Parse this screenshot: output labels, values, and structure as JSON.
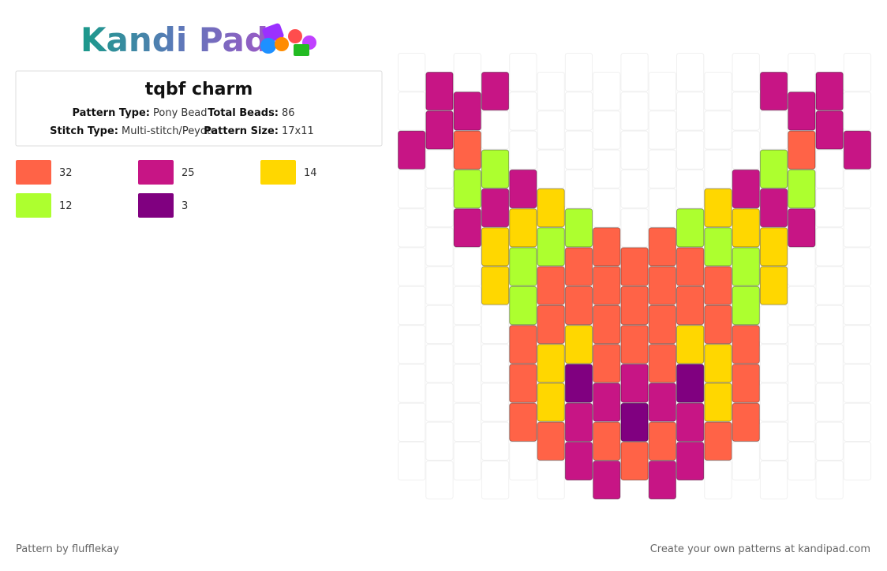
{
  "logo": "Kandi Pad",
  "title": "tqbf charm",
  "details": [
    {
      "label": "Pattern Type:",
      "value": "Pony Bead"
    },
    {
      "label": "Total Beads:",
      "value": "86"
    },
    {
      "label": "Stitch Type:",
      "value": "Multi-stitch/Peyote"
    },
    {
      "label": "Pattern Size:",
      "value": "17x11"
    }
  ],
  "palette": [
    {
      "color": "#ff6347",
      "count": 32
    },
    {
      "color": "#c71585",
      "count": 25
    },
    {
      "color": "#ffd700",
      "count": 14
    },
    {
      "color": "#adff2f",
      "count": 12
    },
    {
      "color": "#800080",
      "count": 3
    }
  ],
  "grid": {
    "columns": [
      [
        null,
        null,
        1,
        null,
        null,
        null,
        null,
        null,
        null,
        null,
        null
      ],
      [
        1,
        1,
        null,
        null,
        null,
        null,
        null,
        null,
        null,
        null,
        null
      ],
      [
        null,
        1,
        0,
        3,
        1,
        null,
        null,
        null,
        null,
        null,
        null
      ],
      [
        1,
        null,
        3,
        1,
        2,
        2,
        null,
        null,
        null,
        null,
        null
      ],
      [
        null,
        null,
        null,
        1,
        2,
        3,
        3,
        0,
        0,
        0,
        null
      ],
      [
        null,
        null,
        null,
        2,
        3,
        0,
        0,
        2,
        2,
        0,
        null
      ],
      [
        null,
        null,
        null,
        null,
        3,
        0,
        0,
        2,
        4,
        1,
        1
      ],
      [
        null,
        null,
        null,
        null,
        0,
        0,
        0,
        0,
        1,
        0,
        1
      ],
      [
        null,
        null,
        null,
        null,
        null,
        0,
        0,
        0,
        1,
        4,
        0
      ],
      [
        null,
        null,
        null,
        null,
        0,
        0,
        0,
        0,
        1,
        0,
        1
      ],
      [
        null,
        null,
        null,
        null,
        3,
        0,
        0,
        2,
        4,
        1,
        1
      ],
      [
        null,
        null,
        null,
        2,
        3,
        0,
        0,
        2,
        2,
        0,
        null
      ],
      [
        null,
        null,
        null,
        1,
        2,
        3,
        3,
        0,
        0,
        0,
        null
      ],
      [
        1,
        null,
        3,
        1,
        2,
        2,
        null,
        null,
        null,
        null,
        null
      ],
      [
        null,
        1,
        0,
        3,
        1,
        null,
        null,
        null,
        null,
        null,
        null
      ],
      [
        1,
        1,
        null,
        null,
        null,
        null,
        null,
        null,
        null,
        null,
        null
      ],
      [
        null,
        null,
        1,
        null,
        null,
        null,
        null,
        null,
        null,
        null,
        null
      ]
    ]
  },
  "footer": {
    "credit": "Pattern by flufflekay",
    "link": "Create your own patterns at kandipad.com"
  }
}
